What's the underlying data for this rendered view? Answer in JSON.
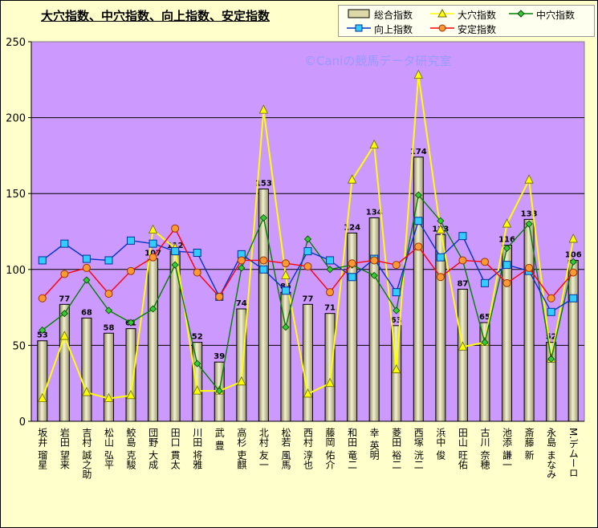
{
  "chart_data": {
    "type": "bar",
    "title": "大穴指数、中穴指数、向上指数、安定指数",
    "watermark": "©Caniの競馬データ研究室",
    "ylim": [
      0,
      250
    ],
    "yticks": [
      "0",
      "50",
      "100",
      "150",
      "200",
      "250"
    ],
    "grid": true,
    "legend_position": "top-right",
    "categories": [
      "坂井 瑠星",
      "岩田 望来",
      "吉村 誠之助",
      "松山 弘平",
      "鮫島 克駿",
      "団野 大成",
      "田口 貫太",
      "川田 将雅",
      "武 豊",
      "高杉 吏麒",
      "北村 友一",
      "松若 風馬",
      "西村 淳也",
      "藤岡 佑介",
      "和田 竜二",
      "幸 英明",
      "菱田 裕二",
      "西塚 洸二",
      "浜中 俊",
      "田山 旺佑",
      "古川 奈穂",
      "池添 謙一",
      "斎藤 新",
      "永島 まなみ",
      "M.デムーロ"
    ],
    "categories_display": [
      "坂井 瑠星",
      "岩田 望来",
      "吉村 誠之助",
      "松山 弘平",
      "鮫島 克駿",
      "団野 大成",
      "田口 貫太",
      "川田 将雅",
      "武 豊",
      "高杉 吏麒",
      "北村 友一",
      "松若 風馬",
      "西村 淳也",
      "藤岡 佑介",
      "和田 竜二",
      "幸 英明",
      "菱田 裕二",
      "西塚 洸二",
      "浜中 俊",
      "田山 旺佑",
      "古川 奈穂",
      "池添 謙一",
      "斎藤 新",
      "永島 まなみ",
      "M.デムーロ"
    ],
    "series": [
      {
        "name": "総合指数",
        "type": "bar",
        "color": "#e8e4b8",
        "values": [
          53,
          77,
          68,
          58,
          61,
          107,
          112,
          52,
          39,
          74,
          153,
          85,
          77,
          71,
          124,
          134,
          63,
          174,
          123,
          87,
          65,
          116,
          133,
          52,
          106
        ]
      },
      {
        "name": "大穴指数",
        "type": "line",
        "color": "#ffff00",
        "marker": "triangle",
        "values": [
          15,
          56,
          19,
          15,
          17,
          126,
          114,
          20,
          20,
          26,
          205,
          96,
          18,
          25,
          159,
          182,
          34,
          228,
          126,
          49,
          52,
          130,
          159,
          41,
          120
        ]
      },
      {
        "name": "中穴指数",
        "type": "line",
        "color": "#008000",
        "marker": "diamond",
        "values": [
          60,
          71,
          93,
          73,
          65,
          74,
          103,
          38,
          20,
          101,
          134,
          62,
          120,
          100,
          103,
          96,
          73,
          149,
          132,
          106,
          52,
          114,
          130,
          41,
          105
        ]
      },
      {
        "name": "向上指数",
        "type": "line",
        "color": "#0033cc",
        "marker": "square",
        "values": [
          106,
          117,
          107,
          106,
          119,
          117,
          112,
          111,
          82,
          110,
          100,
          86,
          112,
          106,
          95,
          107,
          85,
          132,
          108,
          122,
          91,
          103,
          99,
          72,
          81
        ]
      },
      {
        "name": "安定指数",
        "type": "line",
        "color": "#ff0000",
        "marker": "circle",
        "values": [
          81,
          97,
          101,
          84,
          99,
          108,
          127,
          98,
          82,
          106,
          106,
          104,
          102,
          85,
          104,
          106,
          103,
          115,
          95,
          106,
          105,
          91,
          101,
          81,
          98
        ]
      }
    ]
  }
}
